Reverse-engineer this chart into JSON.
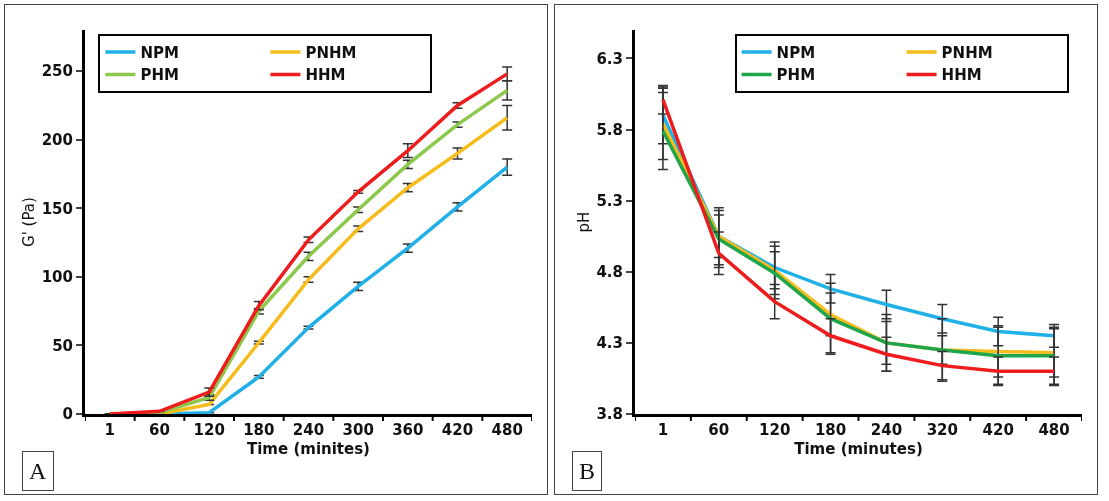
{
  "chart_data": [
    {
      "type": "line",
      "xlabel": "Time (minites)",
      "ylabel": "G' (Pa)",
      "categories": [
        "1",
        "60",
        "120",
        "180",
        "240",
        "300",
        "360",
        "420",
        "480"
      ],
      "ylim": [
        0,
        280
      ],
      "yticks": [
        0,
        50,
        100,
        150,
        200,
        250
      ],
      "grid": false,
      "legend": "top left",
      "marker": "none",
      "line_style": "solid",
      "annotations": [
        "A"
      ],
      "series": [
        {
          "name": "NPM",
          "color": "#1fb0e8",
          "values": [
            0,
            0,
            1,
            27,
            63,
            93,
            121,
            151,
            180
          ],
          "errors": [
            null,
            null,
            null,
            1,
            1,
            3,
            3,
            3,
            6
          ]
        },
        {
          "name": "PNHM",
          "color": "#f6bc1c",
          "values": [
            0,
            0,
            7,
            52,
            98,
            135,
            165,
            190,
            216
          ],
          "errors": [
            null,
            null,
            null,
            1,
            2,
            2,
            3,
            4,
            9
          ]
        },
        {
          "name": "PHM",
          "color": "#8cc84b",
          "values": [
            0,
            1,
            12,
            75,
            115,
            149,
            182,
            211,
            236
          ],
          "errors": [
            null,
            null,
            2,
            2,
            3,
            2,
            3,
            2,
            7
          ]
        },
        {
          "name": "HHM",
          "color": "#ee1c1c",
          "values": [
            0,
            2,
            16,
            79,
            127,
            162,
            192,
            225,
            248
          ],
          "errors": [
            null,
            null,
            3,
            3,
            2,
            1,
            5,
            2,
            5
          ]
        }
      ]
    },
    {
      "type": "line",
      "xlabel": "Time (minutes)",
      "ylabel": "pH",
      "categories": [
        "1",
        "60",
        "120",
        "180",
        "240",
        "320",
        "420",
        "480"
      ],
      "ylim": [
        3.8,
        6.5
      ],
      "yticks": [
        3.8,
        4.3,
        4.8,
        5.3,
        5.8,
        6.3
      ],
      "grid": false,
      "legend": "top right",
      "marker": "none",
      "line_style": "solid",
      "annotations": [
        "B"
      ],
      "series": [
        {
          "name": "NPM",
          "color": "#1fb0e8",
          "values": [
            5.9,
            5.05,
            4.83,
            4.68,
            4.57,
            4.47,
            4.38,
            4.35
          ],
          "errors": [
            0.2,
            0.2,
            0.15,
            0.1,
            0.1,
            0.1,
            0.1,
            0.08
          ]
        },
        {
          "name": "PNHM",
          "color": "#f6bc1c",
          "values": [
            5.84,
            5.05,
            4.81,
            4.5,
            4.3,
            4.25,
            4.24,
            4.23
          ],
          "errors": [
            0.25,
            0.15,
            0.2,
            0.15,
            0.15,
            0.1,
            0.18,
            0.17
          ]
        },
        {
          "name": "PHM",
          "color": "#1fa54a",
          "values": [
            5.79,
            5.03,
            4.79,
            4.47,
            4.3,
            4.25,
            4.21,
            4.21
          ],
          "errors": [
            0.27,
            0.2,
            0.15,
            0.25,
            0.2,
            0.22,
            0.2,
            0.2
          ]
        },
        {
          "name": "HHM",
          "color": "#ee1c1c",
          "values": [
            6.01,
            4.93,
            4.59,
            4.35,
            4.22,
            4.14,
            4.1,
            4.1
          ],
          "errors": [
            0.1,
            0.15,
            0.12,
            0.12,
            0.12,
            0.1,
            0.1,
            0.1
          ]
        }
      ]
    }
  ]
}
